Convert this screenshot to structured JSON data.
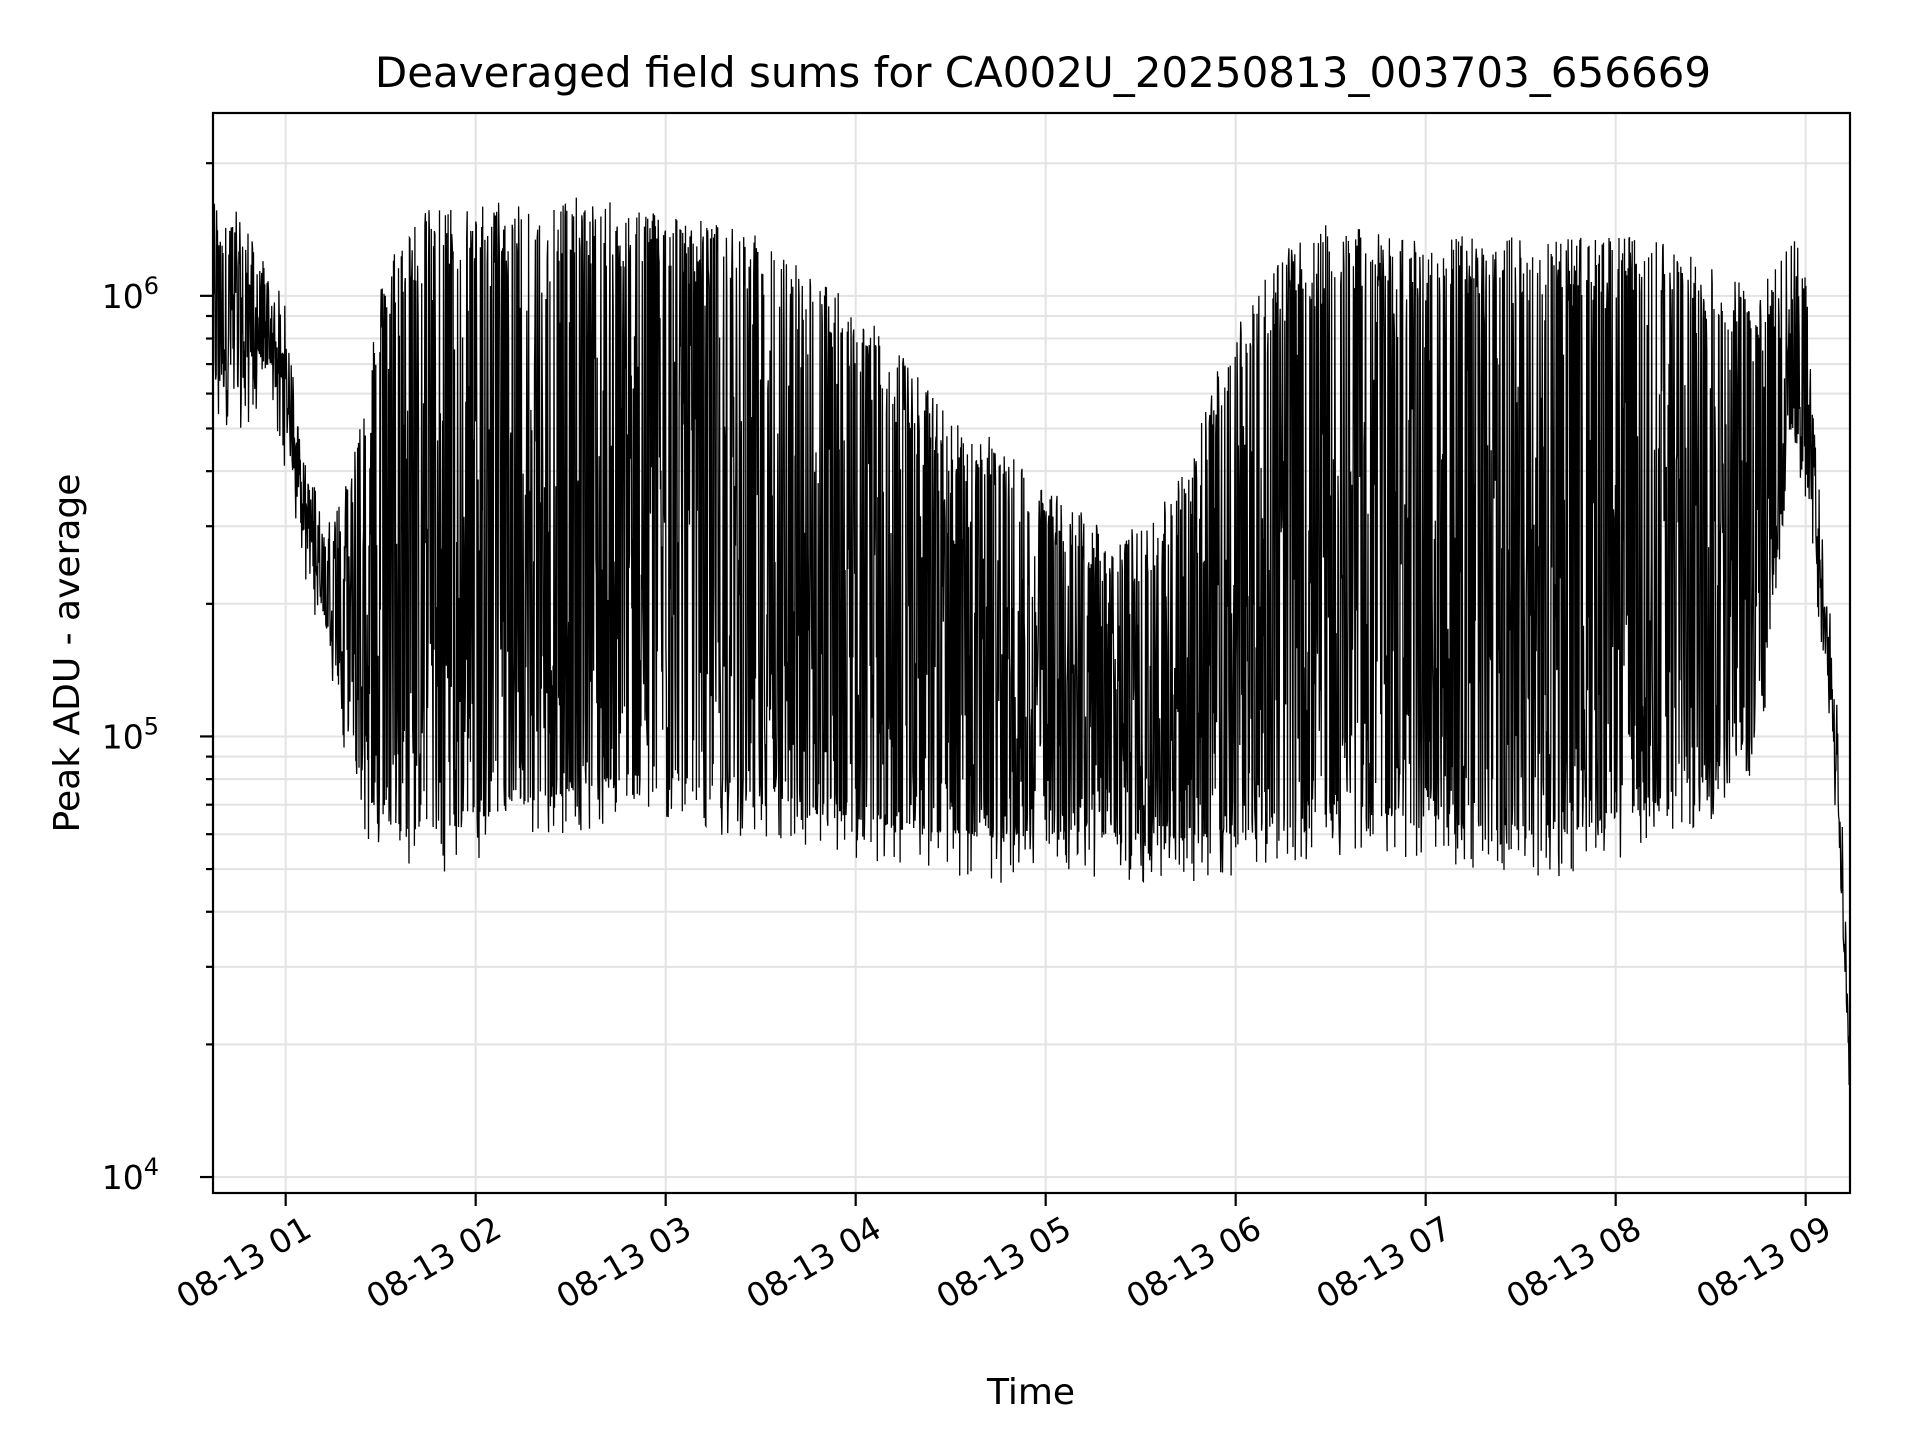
{
  "chart_data": {
    "type": "line",
    "title": "Deaveraged field sums for CA002U_20250813_003703_656669",
    "xlabel": "Time",
    "ylabel": "Peak ADU - average",
    "yscale": "log",
    "ylim": [
      9200,
      2600000
    ],
    "xlim": [
      "2025-08-13 00:37:03",
      "2025-08-13 09:14:00"
    ],
    "grid": true,
    "line_color": "#000000",
    "x_ticks": [
      "2025-08-13 01:00",
      "2025-08-13 02:00",
      "2025-08-13 03:00",
      "2025-08-13 04:00",
      "2025-08-13 05:00",
      "2025-08-13 06:00",
      "2025-08-13 07:00",
      "2025-08-13 08:00",
      "2025-08-13 09:00"
    ],
    "x_tick_labels": [
      "08-13 01",
      "08-13 02",
      "08-13 03",
      "08-13 04",
      "08-13 05",
      "08-13 06",
      "08-13 07",
      "08-13 08",
      "08-13 09"
    ],
    "y_ticks": [
      10000,
      100000,
      1000000
    ],
    "y_tick_labels": [
      {
        "base": "10",
        "exp": "4"
      },
      {
        "base": "10",
        "exp": "5"
      },
      {
        "base": "10",
        "exp": "6"
      }
    ],
    "series": [
      {
        "x": [
          "2025-08-13 00:37",
          "2025-08-13 00:45",
          "2025-08-13 00:55",
          "2025-08-13 01:00",
          "2025-08-13 01:05",
          "2025-08-13 01:10",
          "2025-08-13 01:15",
          "2025-08-13 01:20",
          "2025-08-13 01:25",
          "2025-08-13 01:30",
          "2025-08-13 01:35",
          "2025-08-13 01:45",
          "2025-08-13 02:00",
          "2025-08-13 02:15",
          "2025-08-13 02:30",
          "2025-08-13 02:45",
          "2025-08-13 03:00",
          "2025-08-13 03:15",
          "2025-08-13 03:30",
          "2025-08-13 03:45",
          "2025-08-13 04:00",
          "2025-08-13 04:15",
          "2025-08-13 04:30",
          "2025-08-13 04:45",
          "2025-08-13 05:00",
          "2025-08-13 05:15",
          "2025-08-13 05:30",
          "2025-08-13 05:45",
          "2025-08-13 06:00",
          "2025-08-13 06:15",
          "2025-08-13 06:30",
          "2025-08-13 06:40",
          "2025-08-13 06:50",
          "2025-08-13 07:00",
          "2025-08-13 07:15",
          "2025-08-13 07:30",
          "2025-08-13 07:45",
          "2025-08-13 08:00",
          "2025-08-13 08:15",
          "2025-08-13 08:30",
          "2025-08-13 08:45",
          "2025-08-13 08:55",
          "2025-08-13 09:00",
          "2025-08-13 09:05",
          "2025-08-13 09:10",
          "2025-08-13 09:14"
        ],
        "lo": [
          600000,
          620000,
          700000,
          500000,
          300000,
          220000,
          150000,
          100000,
          75000,
          65000,
          62000,
          60000,
          65000,
          70000,
          75000,
          80000,
          80000,
          75000,
          70000,
          65000,
          65000,
          62000,
          60000,
          58000,
          60000,
          60000,
          58000,
          58000,
          60000,
          65000,
          65000,
          70000,
          65000,
          65000,
          62000,
          60000,
          60000,
          65000,
          70000,
          80000,
          100000,
          500000,
          400000,
          200000,
          70000,
          16000
        ],
        "hi": [
          1600000,
          1500000,
          1100000,
          900000,
          450000,
          350000,
          300000,
          400000,
          600000,
          1000000,
          1300000,
          1500000,
          1550000,
          1600000,
          1600000,
          1550000,
          1500000,
          1400000,
          1300000,
          1100000,
          900000,
          700000,
          500000,
          450000,
          350000,
          300000,
          280000,
          400000,
          900000,
          1200000,
          1400000,
          1350000,
          1300000,
          1300000,
          1300000,
          1300000,
          1300000,
          1300000,
          1300000,
          1100000,
          1000000,
          1400000,
          1100000,
          300000,
          120000,
          20000
        ]
      }
    ]
  }
}
